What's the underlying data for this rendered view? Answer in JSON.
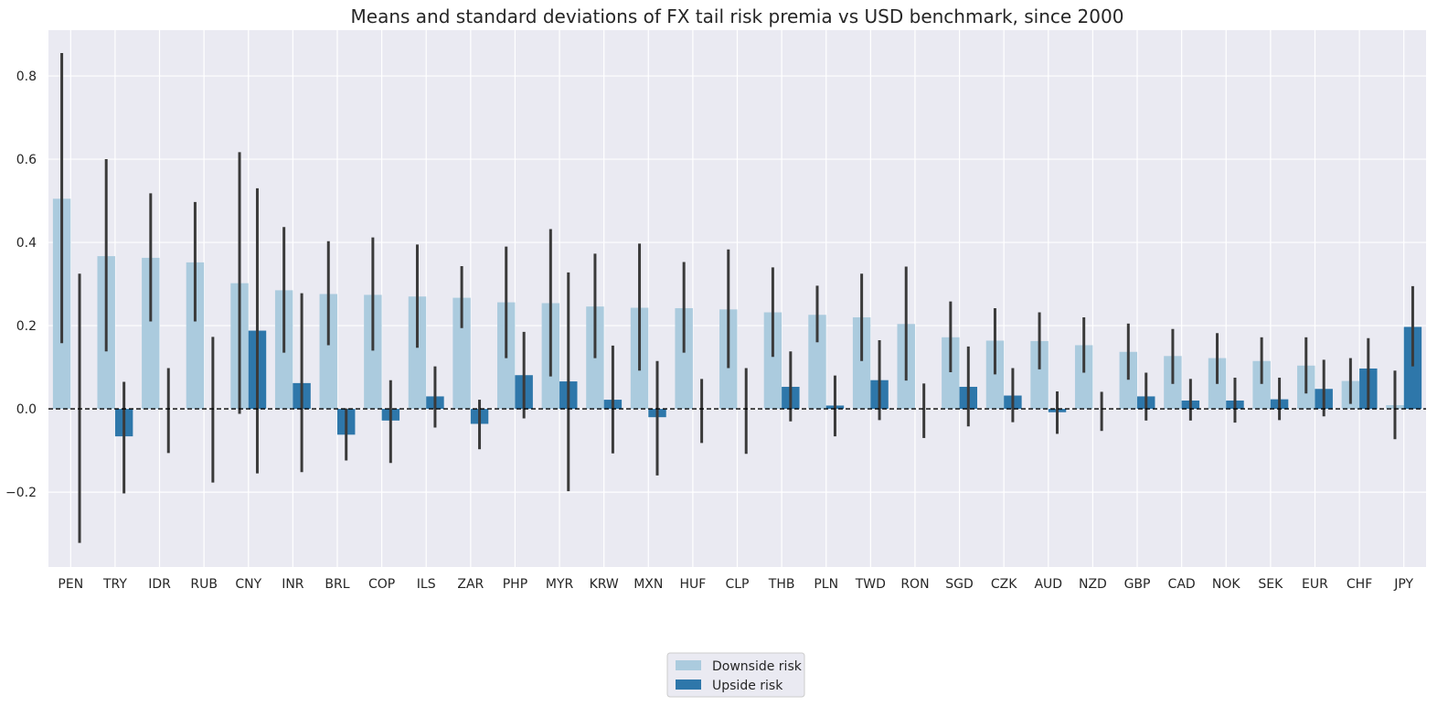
{
  "chart_data": {
    "type": "bar",
    "title": "Means and standard deviations of FX tail risk premia vs USD benchmark, since 2000",
    "xlabel": "",
    "ylabel": "",
    "ylim": [
      -0.38,
      0.91
    ],
    "yticks": [
      -0.2,
      0.0,
      0.2,
      0.4,
      0.6,
      0.8
    ],
    "ytick_labels": [
      "−0.2",
      "0.0",
      "0.2",
      "0.4",
      "0.6",
      "0.8"
    ],
    "grid": true,
    "zero_line": "dashed",
    "legend_position": "bottom-center",
    "categories": [
      "PEN",
      "TRY",
      "IDR",
      "RUB",
      "CNY",
      "INR",
      "BRL",
      "COP",
      "ILS",
      "ZAR",
      "PHP",
      "MYR",
      "KRW",
      "MXN",
      "HUF",
      "CLP",
      "THB",
      "PLN",
      "TWD",
      "RON",
      "SGD",
      "CZK",
      "AUD",
      "NZD",
      "GBP",
      "CAD",
      "NOK",
      "SEK",
      "EUR",
      "CHF",
      "JPY"
    ],
    "series": [
      {
        "name": "Downside risk",
        "color": "#abcbde",
        "values": [
          0.505,
          0.367,
          0.363,
          0.352,
          0.302,
          0.285,
          0.276,
          0.274,
          0.27,
          0.267,
          0.256,
          0.254,
          0.246,
          0.243,
          0.242,
          0.239,
          0.232,
          0.226,
          0.22,
          0.204,
          0.172,
          0.164,
          0.163,
          0.153,
          0.137,
          0.127,
          0.122,
          0.115,
          0.104,
          0.067,
          0.009
        ],
        "error_low": [
          0.158,
          0.138,
          0.21,
          0.21,
          -0.012,
          0.135,
          0.153,
          0.14,
          0.147,
          0.194,
          0.122,
          0.078,
          0.122,
          0.092,
          0.135,
          0.098,
          0.125,
          0.16,
          0.115,
          0.068,
          0.088,
          0.083,
          0.095,
          0.087,
          0.07,
          0.06,
          0.06,
          0.06,
          0.037,
          0.012,
          -0.073
        ],
        "error_high": [
          0.855,
          0.6,
          0.518,
          0.497,
          0.617,
          0.437,
          0.403,
          0.412,
          0.395,
          0.343,
          0.39,
          0.432,
          0.373,
          0.397,
          0.353,
          0.383,
          0.34,
          0.296,
          0.325,
          0.342,
          0.258,
          0.242,
          0.232,
          0.22,
          0.205,
          0.192,
          0.182,
          0.172,
          0.172,
          0.122,
          0.092
        ]
      },
      {
        "name": "Upside risk",
        "color": "#2e77aa",
        "values": [
          0.0,
          -0.066,
          0.0,
          0.0,
          0.188,
          0.062,
          -0.062,
          -0.028,
          0.03,
          -0.036,
          0.081,
          0.066,
          0.022,
          -0.02,
          0.0,
          0.0,
          0.053,
          0.008,
          0.069,
          0.0,
          0.053,
          0.032,
          -0.008,
          0.0,
          0.03,
          0.02,
          0.02,
          0.023,
          0.048,
          0.097,
          0.197
        ],
        "error_low": [
          -0.322,
          -0.203,
          -0.106,
          -0.177,
          -0.155,
          -0.152,
          -0.124,
          -0.13,
          -0.045,
          -0.097,
          -0.023,
          -0.198,
          -0.107,
          -0.16,
          -0.082,
          -0.108,
          -0.03,
          -0.066,
          -0.027,
          -0.07,
          -0.042,
          -0.032,
          -0.06,
          -0.053,
          -0.028,
          -0.028,
          -0.033,
          -0.027,
          -0.018,
          -0.002,
          0.102
        ],
        "error_high": [
          0.325,
          0.065,
          0.098,
          0.173,
          0.53,
          0.278,
          0.001,
          0.069,
          0.102,
          0.022,
          0.185,
          0.328,
          0.152,
          0.115,
          0.072,
          0.098,
          0.138,
          0.08,
          0.165,
          0.061,
          0.15,
          0.098,
          0.042,
          0.041,
          0.087,
          0.072,
          0.075,
          0.075,
          0.118,
          0.17,
          0.295
        ]
      }
    ]
  }
}
